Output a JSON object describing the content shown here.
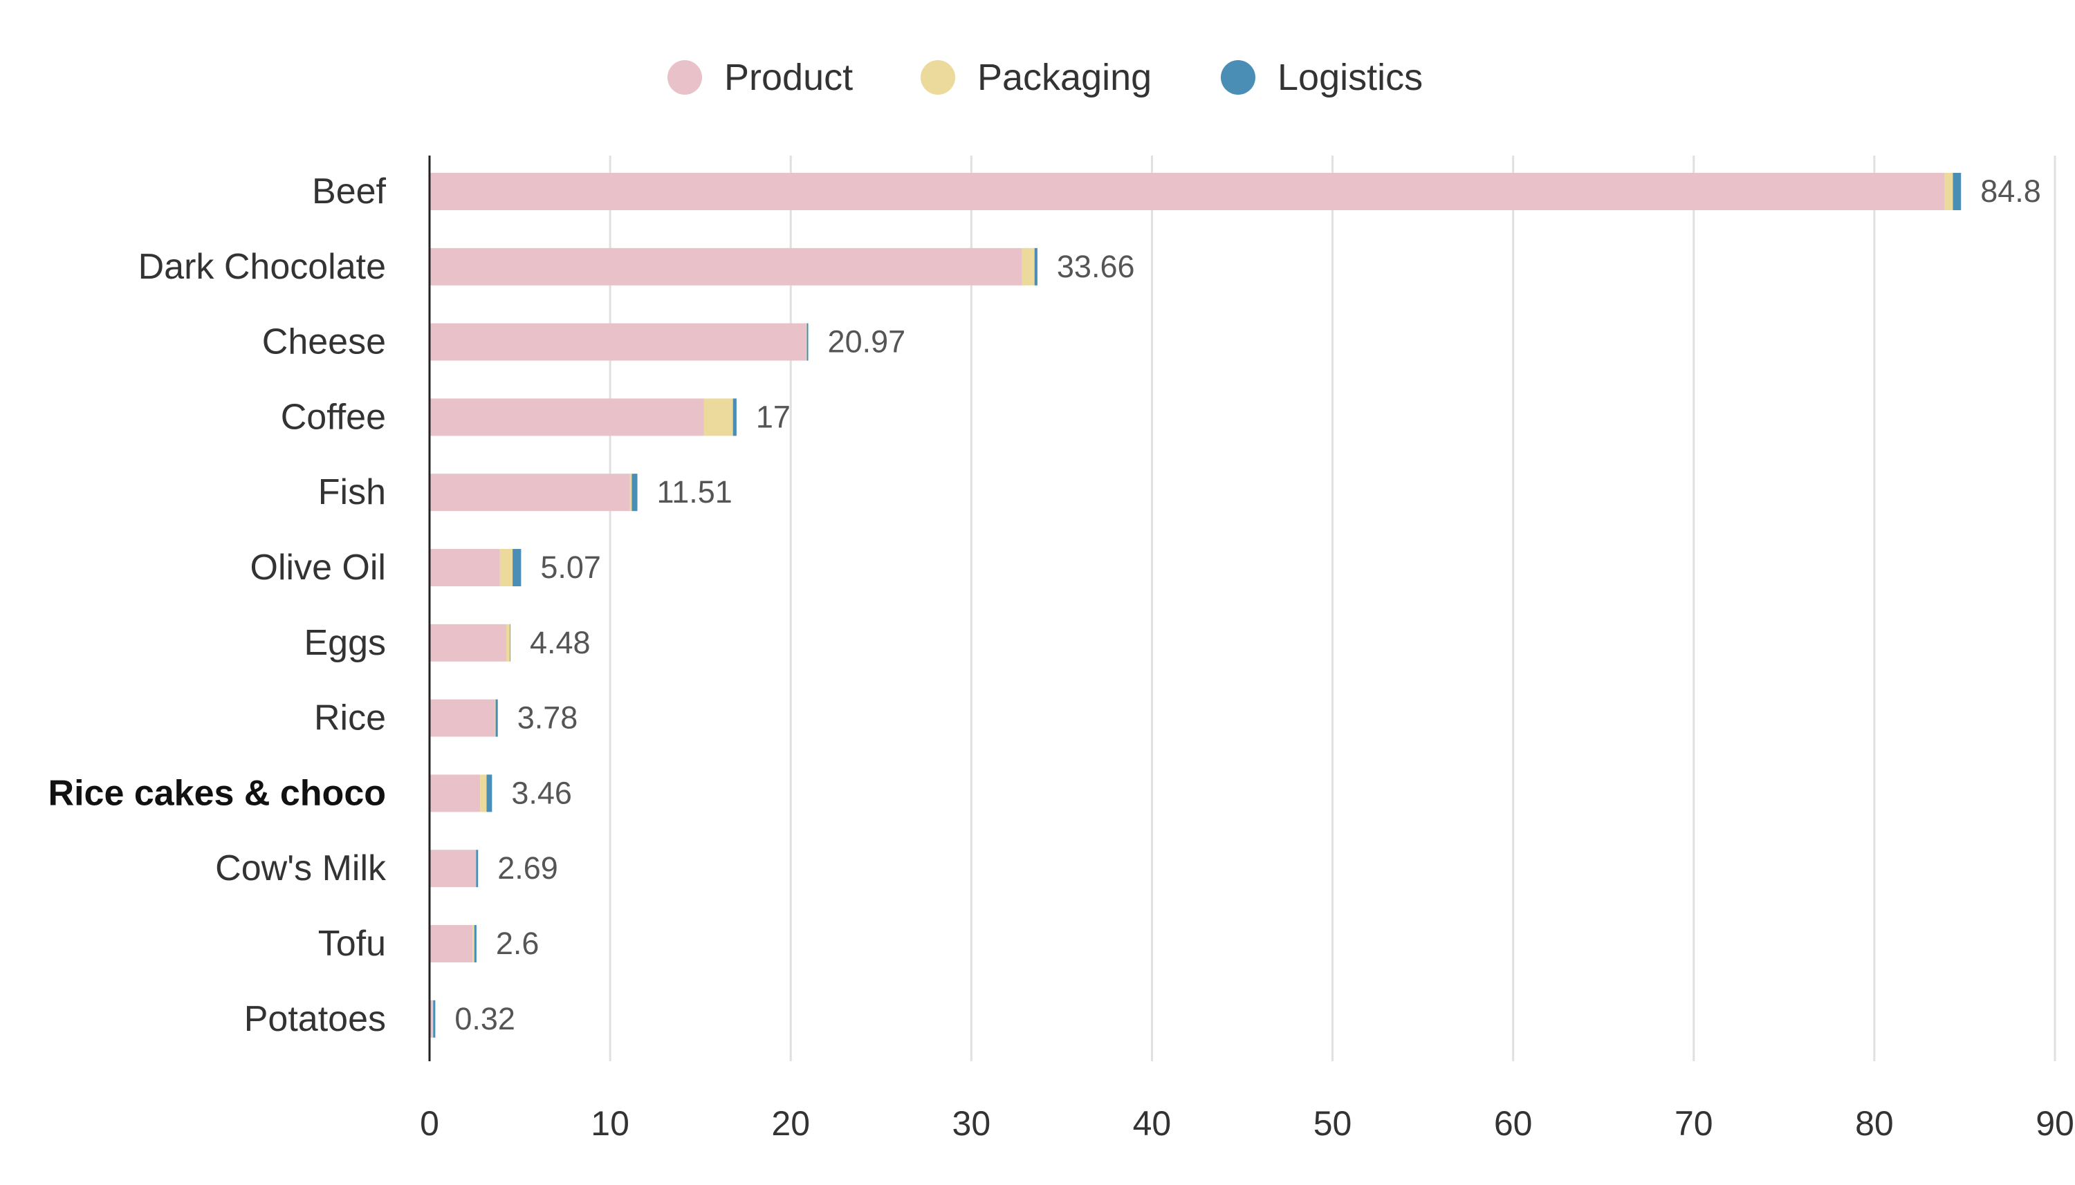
{
  "chart_data": {
    "type": "bar",
    "orientation": "horizontal",
    "stacked": true,
    "categories": [
      "Beef",
      "Dark Chocolate",
      "Cheese",
      "Coffee",
      "Fish",
      "Olive Oil",
      "Eggs",
      "Rice",
      "Rice cakes & choco",
      "Cow's Milk",
      "Tofu",
      "Potatoes"
    ],
    "highlighted_category": "Rice cakes & choco",
    "series": [
      {
        "name": "Product",
        "color": "#e8c2c8",
        "values": [
          83.9,
          32.8,
          20.85,
          15.2,
          11.1,
          3.9,
          4.25,
          3.63,
          2.8,
          2.58,
          2.38,
          0.17
        ]
      },
      {
        "name": "Packaging",
        "color": "#ecda9c",
        "values": [
          0.45,
          0.7,
          0.04,
          1.6,
          0.1,
          0.7,
          0.2,
          0.03,
          0.36,
          0.0,
          0.1,
          0.03
        ]
      },
      {
        "name": "Logistics",
        "color": "#4a8db5",
        "values": [
          0.45,
          0.16,
          0.08,
          0.2,
          0.31,
          0.47,
          0.03,
          0.12,
          0.3,
          0.11,
          0.12,
          0.12
        ]
      }
    ],
    "totals": [
      "84.8",
      "33.66",
      "20.97",
      "17",
      "11.51",
      "5.07",
      "4.48",
      "3.78",
      "3.46",
      "2.69",
      "2.6",
      "0.32"
    ],
    "xlim": [
      0,
      90
    ],
    "xticks": [
      "0",
      "10",
      "20",
      "30",
      "40",
      "50",
      "60",
      "70",
      "80",
      "90"
    ],
    "grid": true,
    "legend_position": "top"
  }
}
